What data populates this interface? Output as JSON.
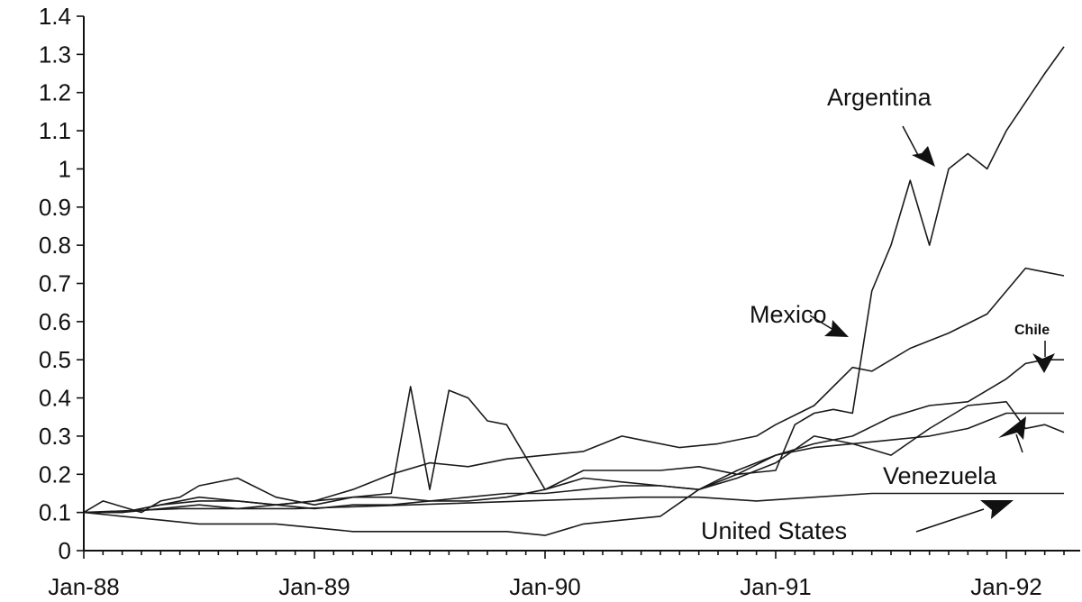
{
  "chart_data": {
    "type": "line",
    "title": "",
    "xlabel": "",
    "ylabel": "",
    "ylim": [
      0,
      1.4
    ],
    "yticks": [
      0,
      0.1,
      0.2,
      0.3,
      0.4,
      0.5,
      0.6,
      0.7,
      0.8,
      0.9,
      1,
      1.1,
      1.2,
      1.3,
      1.4
    ],
    "ytick_labels": [
      "0",
      "0.1",
      "0.2",
      "0.3",
      "0.4",
      "0.5",
      "0.6",
      "0.7",
      "0.8",
      "0.9",
      "1",
      "1.1",
      "1.2",
      "1.3",
      "1.4"
    ],
    "xlim": [
      "1988-01",
      "1992-04"
    ],
    "xtick_labels": [
      "Jan-88",
      "Jan-89",
      "Jan-90",
      "Jan-91",
      "Jan-92"
    ],
    "xtick_dates": [
      "1988-01",
      "1989-01",
      "1990-01",
      "1991-01",
      "1992-01"
    ],
    "grid": false,
    "legend": "none",
    "series": [
      {
        "name": "Argentina",
        "points": [
          [
            "1988-01",
            0.1
          ],
          [
            "1988-03",
            0.1
          ],
          [
            "1988-05",
            0.12
          ],
          [
            "1988-07",
            0.13
          ],
          [
            "1988-09",
            0.13
          ],
          [
            "1988-11",
            0.12
          ],
          [
            "1989-01",
            0.13
          ],
          [
            "1989-03",
            0.14
          ],
          [
            "1989-05",
            0.15
          ],
          [
            "1989-06",
            0.43
          ],
          [
            "1989-07",
            0.16
          ],
          [
            "1989-08",
            0.42
          ],
          [
            "1989-09",
            0.4
          ],
          [
            "1989-10",
            0.34
          ],
          [
            "1989-11",
            0.33
          ],
          [
            "1990-01",
            0.16
          ],
          [
            "1990-03",
            0.21
          ],
          [
            "1990-05",
            0.21
          ],
          [
            "1990-07",
            0.21
          ],
          [
            "1990-09",
            0.22
          ],
          [
            "1990-11",
            0.2
          ],
          [
            "1991-01",
            0.21
          ],
          [
            "1991-02",
            0.33
          ],
          [
            "1991-03",
            0.36
          ],
          [
            "1991-04",
            0.37
          ],
          [
            "1991-05",
            0.36
          ],
          [
            "1991-06",
            0.68
          ],
          [
            "1991-07",
            0.8
          ],
          [
            "1991-08",
            0.97
          ],
          [
            "1991-09",
            0.8
          ],
          [
            "1991-10",
            1.0
          ],
          [
            "1991-11",
            1.04
          ],
          [
            "1991-12",
            1.0
          ],
          [
            "1992-01",
            1.1
          ],
          [
            "1992-03",
            1.25
          ],
          [
            "1992-04",
            1.32
          ]
        ]
      },
      {
        "name": "Mexico",
        "points": [
          [
            "1988-01",
            0.1
          ],
          [
            "1988-03",
            0.1
          ],
          [
            "1988-05",
            0.12
          ],
          [
            "1988-07",
            0.14
          ],
          [
            "1988-09",
            0.13
          ],
          [
            "1988-11",
            0.12
          ],
          [
            "1989-01",
            0.13
          ],
          [
            "1989-03",
            0.16
          ],
          [
            "1989-05",
            0.2
          ],
          [
            "1989-07",
            0.23
          ],
          [
            "1989-09",
            0.22
          ],
          [
            "1989-11",
            0.24
          ],
          [
            "1990-01",
            0.25
          ],
          [
            "1990-03",
            0.26
          ],
          [
            "1990-05",
            0.3
          ],
          [
            "1990-06",
            0.29
          ],
          [
            "1990-08",
            0.27
          ],
          [
            "1990-10",
            0.28
          ],
          [
            "1990-12",
            0.3
          ],
          [
            "1991-01",
            0.33
          ],
          [
            "1991-03",
            0.38
          ],
          [
            "1991-05",
            0.48
          ],
          [
            "1991-06",
            0.47
          ],
          [
            "1991-08",
            0.53
          ],
          [
            "1991-10",
            0.57
          ],
          [
            "1991-12",
            0.62
          ],
          [
            "1992-02",
            0.74
          ],
          [
            "1992-03",
            0.73
          ],
          [
            "1992-04",
            0.72
          ]
        ]
      },
      {
        "name": "Chile",
        "points": [
          [
            "1988-01",
            0.1
          ],
          [
            "1988-03",
            0.1
          ],
          [
            "1988-05",
            0.11
          ],
          [
            "1988-07",
            0.12
          ],
          [
            "1988-09",
            0.11
          ],
          [
            "1988-11",
            0.12
          ],
          [
            "1989-01",
            0.11
          ],
          [
            "1989-03",
            0.12
          ],
          [
            "1989-05",
            0.12
          ],
          [
            "1989-07",
            0.13
          ],
          [
            "1989-09",
            0.14
          ],
          [
            "1989-11",
            0.15
          ],
          [
            "1990-01",
            0.15
          ],
          [
            "1990-03",
            0.16
          ],
          [
            "1990-05",
            0.17
          ],
          [
            "1990-07",
            0.17
          ],
          [
            "1990-09",
            0.16
          ],
          [
            "1990-11",
            0.2
          ],
          [
            "1991-01",
            0.25
          ],
          [
            "1991-03",
            0.28
          ],
          [
            "1991-05",
            0.3
          ],
          [
            "1991-07",
            0.35
          ],
          [
            "1991-09",
            0.38
          ],
          [
            "1991-11",
            0.39
          ],
          [
            "1992-01",
            0.45
          ],
          [
            "1992-02",
            0.49
          ],
          [
            "1992-03",
            0.5
          ],
          [
            "1992-04",
            0.5
          ]
        ]
      },
      {
        "name": "Venezuela",
        "points": [
          [
            "1988-01",
            0.1
          ],
          [
            "1988-02",
            0.13
          ],
          [
            "1988-04",
            0.1
          ],
          [
            "1988-05",
            0.13
          ],
          [
            "1988-06",
            0.14
          ],
          [
            "1988-07",
            0.17
          ],
          [
            "1988-09",
            0.19
          ],
          [
            "1988-11",
            0.14
          ],
          [
            "1989-01",
            0.12
          ],
          [
            "1989-03",
            0.14
          ],
          [
            "1989-05",
            0.14
          ],
          [
            "1989-07",
            0.13
          ],
          [
            "1989-09",
            0.13
          ],
          [
            "1989-11",
            0.14
          ],
          [
            "1990-01",
            0.16
          ],
          [
            "1990-03",
            0.19
          ],
          [
            "1990-05",
            0.18
          ],
          [
            "1990-07",
            0.17
          ],
          [
            "1990-09",
            0.16
          ],
          [
            "1990-11",
            0.19
          ],
          [
            "1991-01",
            0.23
          ],
          [
            "1991-03",
            0.3
          ],
          [
            "1991-05",
            0.28
          ],
          [
            "1991-07",
            0.25
          ],
          [
            "1991-09",
            0.32
          ],
          [
            "1991-11",
            0.38
          ],
          [
            "1992-01",
            0.39
          ],
          [
            "1992-02",
            0.32
          ],
          [
            "1992-03",
            0.33
          ],
          [
            "1992-04",
            0.31
          ]
        ]
      },
      {
        "name": "United States",
        "points": [
          [
            "1988-01",
            0.1
          ],
          [
            "1988-03",
            0.09
          ],
          [
            "1988-05",
            0.08
          ],
          [
            "1988-07",
            0.07
          ],
          [
            "1988-09",
            0.07
          ],
          [
            "1988-11",
            0.07
          ],
          [
            "1989-01",
            0.06
          ],
          [
            "1989-03",
            0.05
          ],
          [
            "1989-05",
            0.05
          ],
          [
            "1989-07",
            0.05
          ],
          [
            "1989-09",
            0.05
          ],
          [
            "1989-11",
            0.05
          ],
          [
            "1990-01",
            0.04
          ],
          [
            "1990-03",
            0.07
          ],
          [
            "1990-05",
            0.08
          ],
          [
            "1990-07",
            0.09
          ],
          [
            "1990-09",
            0.16
          ],
          [
            "1990-11",
            0.21
          ],
          [
            "1991-01",
            0.25
          ],
          [
            "1991-03",
            0.27
          ],
          [
            "1991-05",
            0.28
          ],
          [
            "1991-07",
            0.29
          ],
          [
            "1991-09",
            0.3
          ],
          [
            "1991-11",
            0.32
          ],
          [
            "1992-01",
            0.36
          ],
          [
            "1992-03",
            0.36
          ],
          [
            "1992-04",
            0.36
          ]
        ]
      },
      {
        "name": "",
        "points": [
          [
            "1988-01",
            0.1
          ],
          [
            "1988-06",
            0.11
          ],
          [
            "1988-12",
            0.11
          ],
          [
            "1989-06",
            0.12
          ],
          [
            "1989-12",
            0.13
          ],
          [
            "1990-06",
            0.14
          ],
          [
            "1990-09",
            0.14
          ],
          [
            "1990-12",
            0.13
          ],
          [
            "1991-03",
            0.14
          ],
          [
            "1991-06",
            0.15
          ],
          [
            "1991-12",
            0.15
          ],
          [
            "1992-04",
            0.15
          ]
        ]
      }
    ],
    "annotations": [
      {
        "text": "Argentina",
        "points_to": [
          "1991-06",
          1.0
        ]
      },
      {
        "text": "Mexico",
        "points_to": [
          "1991-04",
          0.46
        ]
      },
      {
        "text": "Chile",
        "points_to": [
          "1992-02",
          0.49
        ]
      },
      {
        "text": "Venezuela",
        "points_to": [
          "1991-12",
          0.34
        ]
      },
      {
        "text": "United States",
        "points_to": [
          "1991-10",
          0.15
        ]
      }
    ]
  }
}
